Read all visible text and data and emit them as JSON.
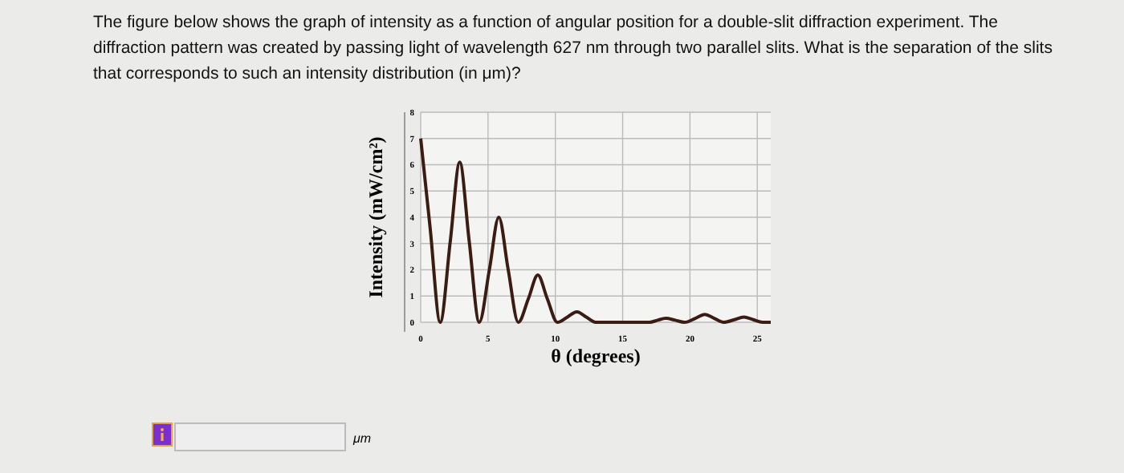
{
  "chart_data": {
    "type": "line",
    "title": "The figure below shows the graph of intensity as a function of angular position for a double-slit diffraction experiment. The diffraction pattern was created by passing light of wavelength 627 nm through two parallel slits. What is the separation of the slits that corresponds to such an intensity distribution (in μm)?",
    "xlabel": "θ (degrees)",
    "ylabel": "Intensity (mW/cm²)",
    "annotations": [
      "μm"
    ],
    "series": [
      {
        "color": "#3a1c12",
        "x": [
          0,
          0.7,
          1.45,
          2.2,
          2.9,
          3.6,
          4.35,
          5.1,
          5.8,
          6.5,
          7.25,
          8.0,
          8.7,
          9.4,
          10.15,
          10.9,
          11.6,
          12.3,
          13.0,
          15,
          17,
          17.6,
          18.2,
          18.9,
          19.6,
          20.4,
          21.1,
          21.8,
          22.5,
          23.3,
          24,
          24.7,
          25.4,
          26
        ],
        "values": [
          7,
          3.6,
          0,
          3.1,
          6.1,
          3.1,
          0,
          2.0,
          4.0,
          2.0,
          0,
          0.9,
          1.8,
          0.9,
          0,
          0.2,
          0.4,
          0.2,
          0,
          0,
          0,
          0.08,
          0.15,
          0.08,
          0,
          0.15,
          0.3,
          0.15,
          0,
          0.1,
          0.2,
          0.1,
          0,
          0
        ]
      }
    ],
    "xlim": [
      0,
      26
    ],
    "ylim": [
      0,
      8
    ],
    "xticks": [
      0,
      5,
      10,
      15,
      20,
      25
    ],
    "yticks": [
      0,
      1,
      2,
      3,
      4,
      5,
      6,
      7,
      8
    ],
    "grid": true,
    "marker": "none",
    "line_style": "solid"
  }
}
